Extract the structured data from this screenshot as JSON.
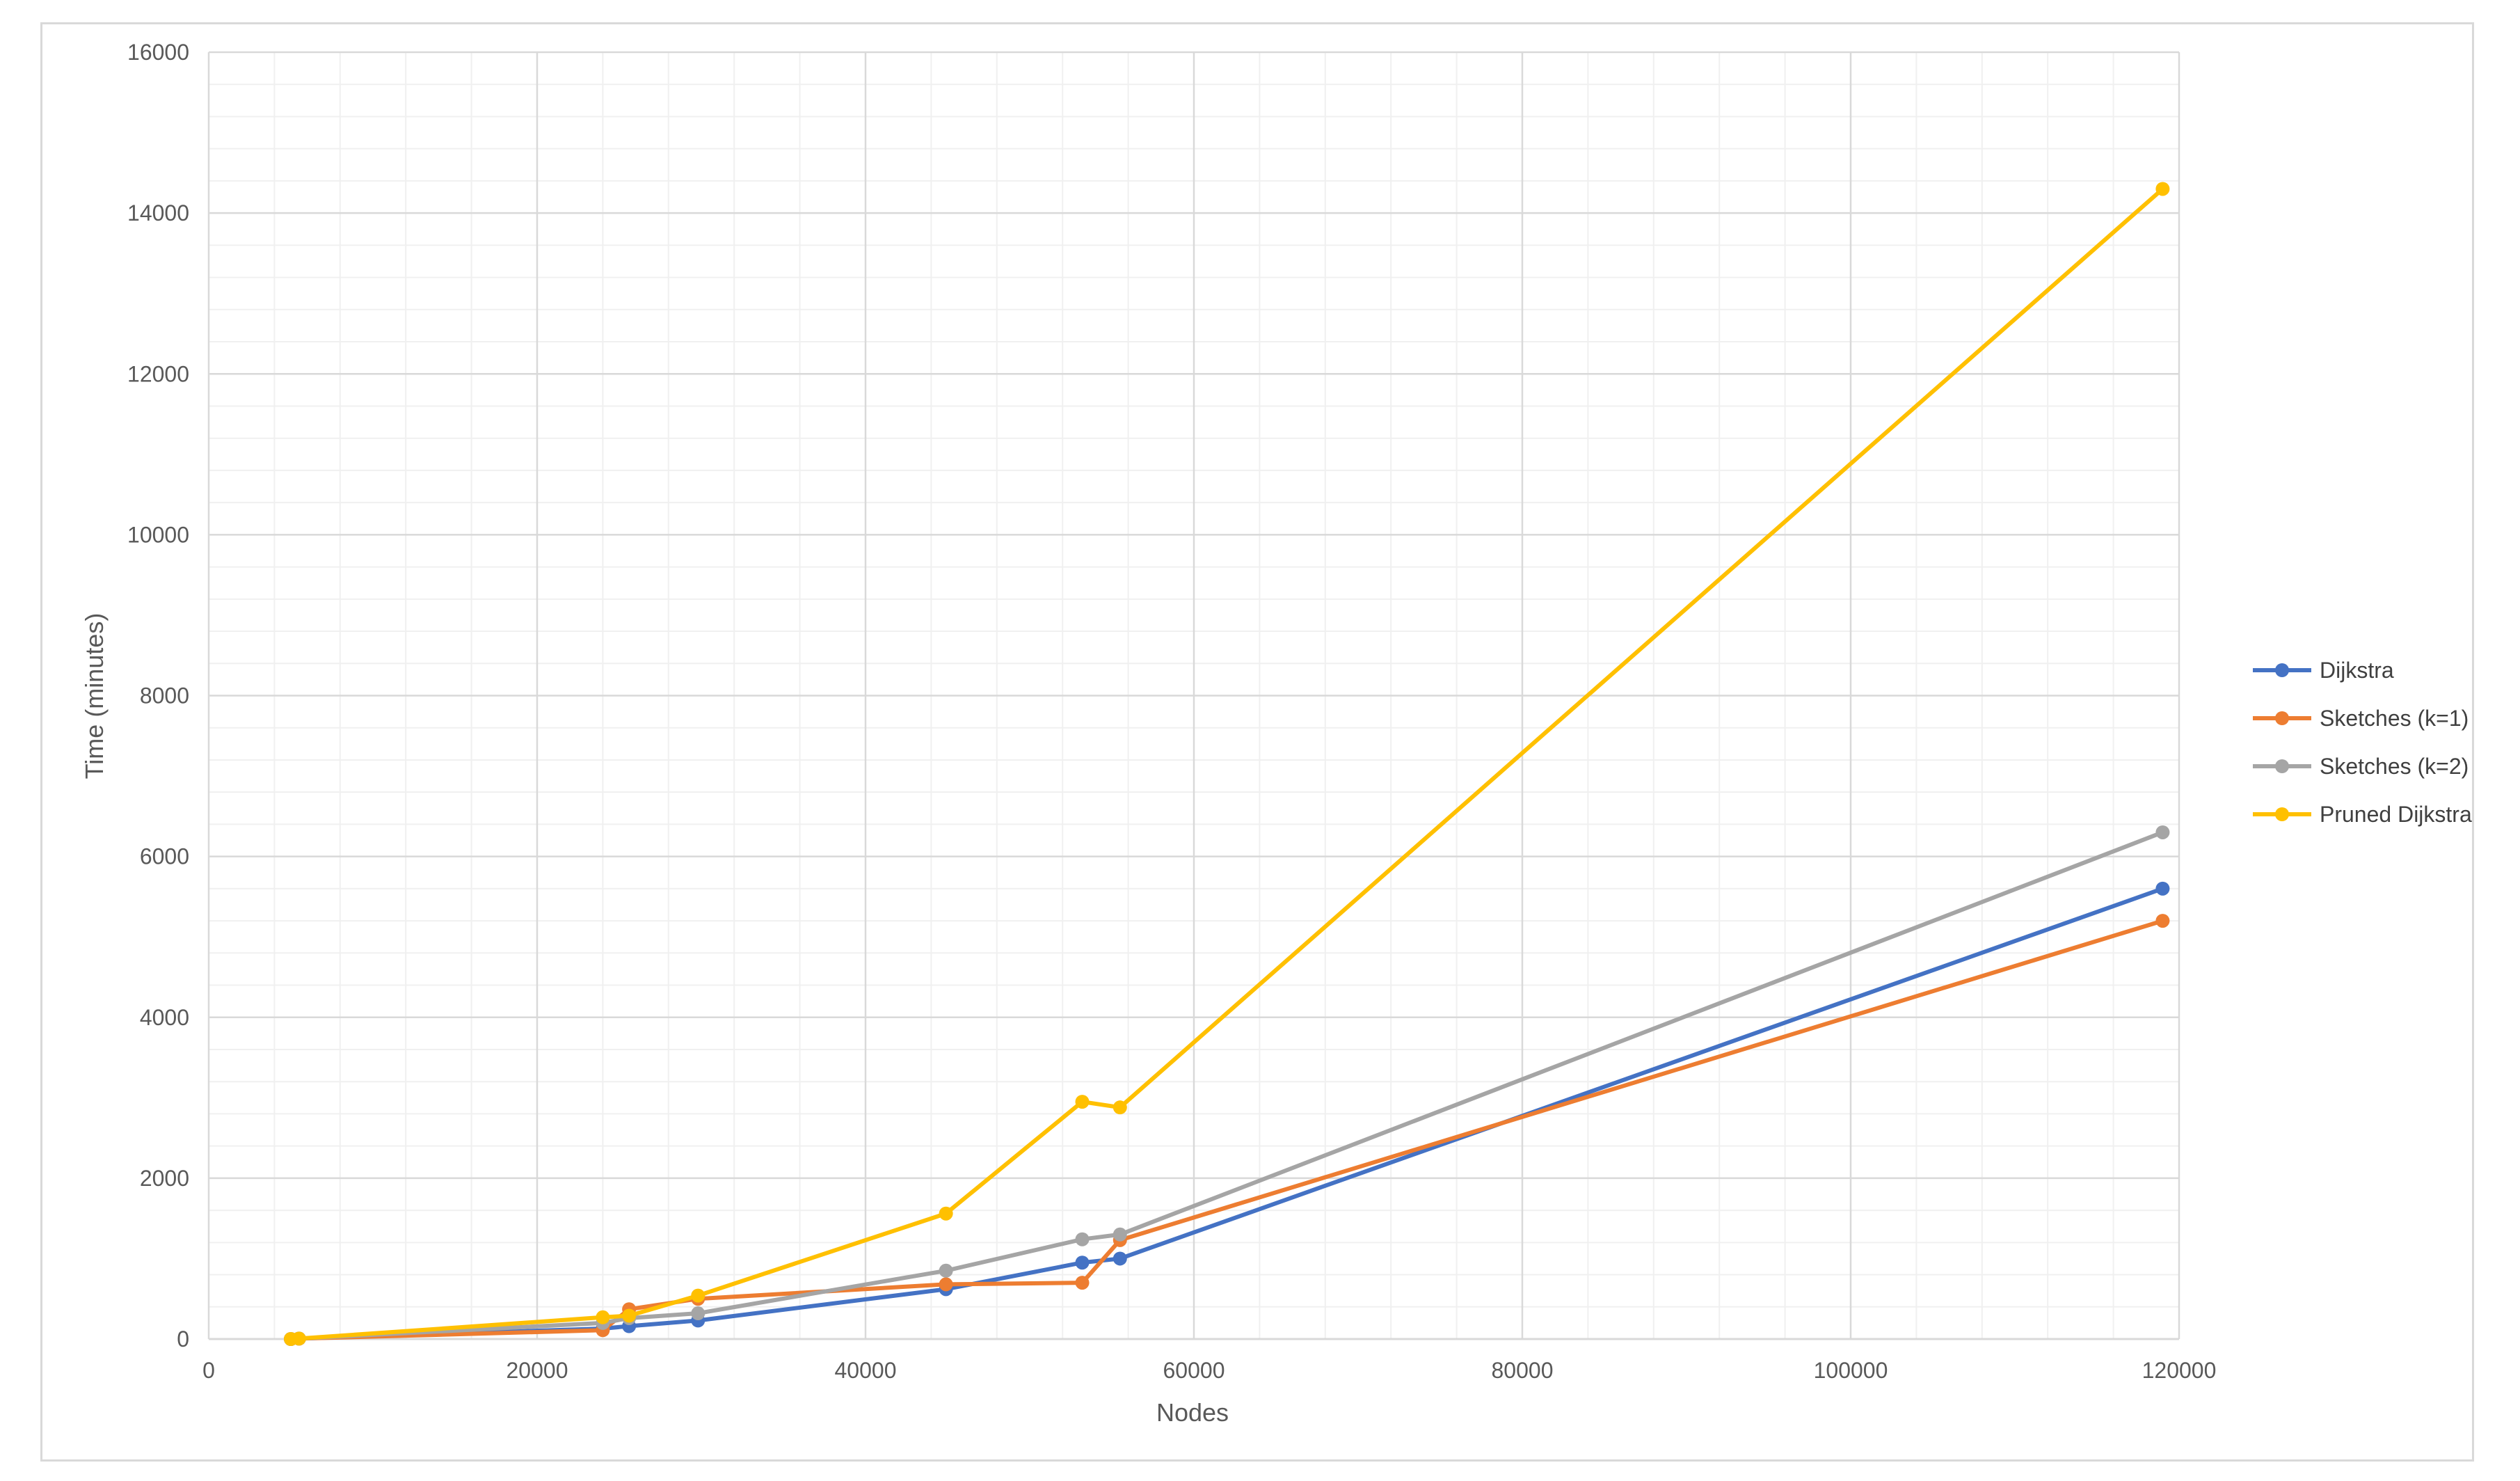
{
  "chart_data": {
    "type": "line",
    "title": "",
    "xlabel": "Nodes",
    "ylabel": "Time (minutes)",
    "xlim": [
      0,
      120000
    ],
    "ylim": [
      0,
      16000
    ],
    "x_ticks": [
      0,
      20000,
      40000,
      60000,
      80000,
      100000,
      120000
    ],
    "y_ticks": [
      0,
      2000,
      4000,
      6000,
      8000,
      10000,
      12000,
      14000,
      16000
    ],
    "grid": true,
    "legend_position": "right",
    "series": [
      {
        "name": "Dijkstra",
        "color": "#4472C4",
        "points": [
          [
            5000,
            0
          ],
          [
            5500,
            5
          ],
          [
            24000,
            130
          ],
          [
            25600,
            160
          ],
          [
            29800,
            230
          ],
          [
            44900,
            620
          ],
          [
            53200,
            950
          ],
          [
            55500,
            1000
          ],
          [
            119000,
            5600
          ]
        ]
      },
      {
        "name": "Sketches (k=1)",
        "color": "#ED7D31",
        "points": [
          [
            5000,
            0
          ],
          [
            5500,
            5
          ],
          [
            24000,
            110
          ],
          [
            25600,
            370
          ],
          [
            29800,
            500
          ],
          [
            44900,
            680
          ],
          [
            53200,
            700
          ],
          [
            55500,
            1230
          ],
          [
            119000,
            5200
          ]
        ]
      },
      {
        "name": "Sketches (k=2)",
        "color": "#A5A5A5",
        "points": [
          [
            5000,
            0
          ],
          [
            5500,
            5
          ],
          [
            24000,
            200
          ],
          [
            25600,
            260
          ],
          [
            29800,
            320
          ],
          [
            44900,
            850
          ],
          [
            53200,
            1240
          ],
          [
            55500,
            1300
          ],
          [
            119000,
            6300
          ]
        ]
      },
      {
        "name": "Pruned Dijkstra",
        "color": "#FFC000",
        "points": [
          [
            5000,
            0
          ],
          [
            5500,
            5
          ],
          [
            24000,
            270
          ],
          [
            25600,
            290
          ],
          [
            29800,
            540
          ],
          [
            44900,
            1560
          ],
          [
            53200,
            2950
          ],
          [
            55500,
            2880
          ],
          [
            119000,
            14300
          ]
        ]
      }
    ]
  }
}
